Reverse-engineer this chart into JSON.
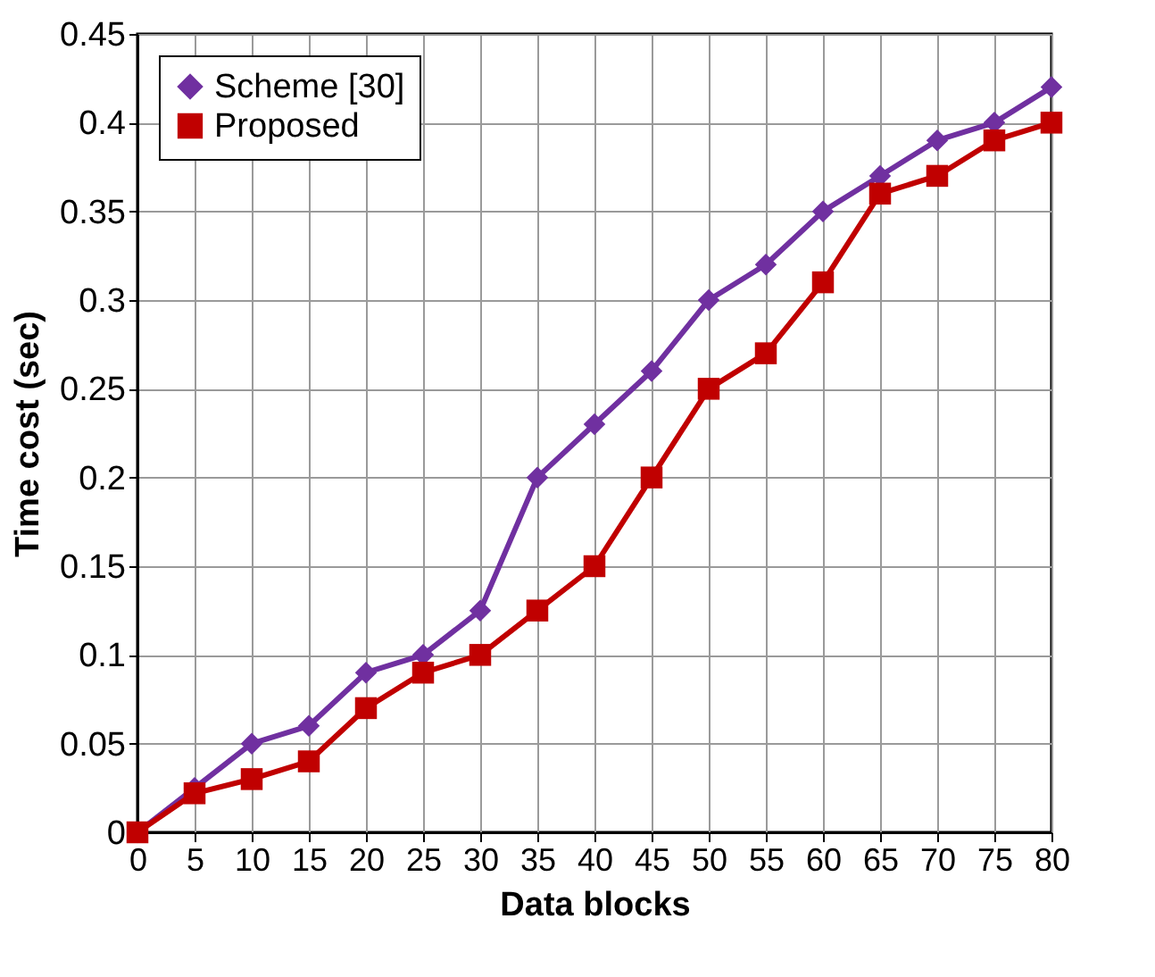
{
  "chart_data": {
    "type": "line",
    "xlabel": "Data blocks",
    "ylabel": "Time cost (sec)",
    "x": [
      0,
      5,
      10,
      15,
      20,
      25,
      30,
      35,
      40,
      45,
      50,
      55,
      60,
      65,
      70,
      75,
      80
    ],
    "series": [
      {
        "name": "Scheme [30]",
        "color": "#7030a0",
        "marker": "diamond",
        "values": [
          0,
          0.025,
          0.05,
          0.06,
          0.09,
          0.1,
          0.125,
          0.2,
          0.23,
          0.26,
          0.3,
          0.32,
          0.35,
          0.37,
          0.39,
          0.4,
          0.42
        ]
      },
      {
        "name": "Proposed",
        "color": "#c00000",
        "marker": "square",
        "values": [
          0,
          0.022,
          0.03,
          0.04,
          0.07,
          0.09,
          0.1,
          0.125,
          0.15,
          0.2,
          0.25,
          0.27,
          0.31,
          0.36,
          0.37,
          0.39,
          0.4
        ]
      }
    ],
    "xlim": [
      0,
      80
    ],
    "xticks": [
      0,
      5,
      10,
      15,
      20,
      25,
      30,
      35,
      40,
      45,
      50,
      55,
      60,
      65,
      70,
      75,
      80
    ],
    "ylim": [
      0,
      0.45
    ],
    "yticks": [
      0,
      0.05,
      0.1,
      0.15,
      0.2,
      0.25,
      0.3,
      0.35,
      0.4,
      0.45
    ],
    "grid": true,
    "legend": "top left",
    "line_style": "solid"
  }
}
